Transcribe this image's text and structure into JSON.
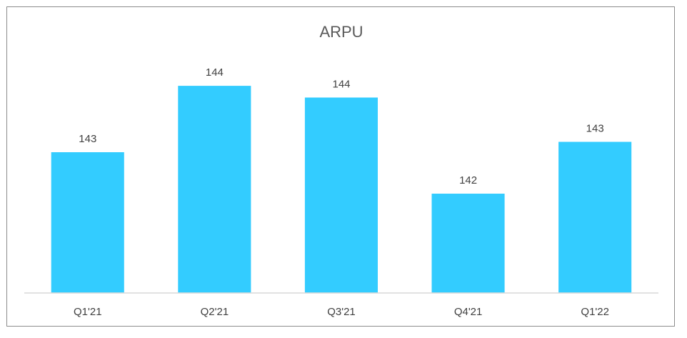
{
  "chart_data": {
    "type": "bar",
    "title": "ARPU",
    "categories": [
      "Q1'21",
      "Q2'21",
      "Q3'21",
      "Q4'21",
      "Q1'22"
    ],
    "values": [
      143,
      144,
      144,
      142,
      143
    ],
    "data_labels": [
      "143",
      "144",
      "144",
      "142",
      "143"
    ],
    "xlabel": "",
    "ylabel": "",
    "y_axis_visible": false,
    "grid": false,
    "legend": "none",
    "bar_color": "#33CCFF"
  }
}
